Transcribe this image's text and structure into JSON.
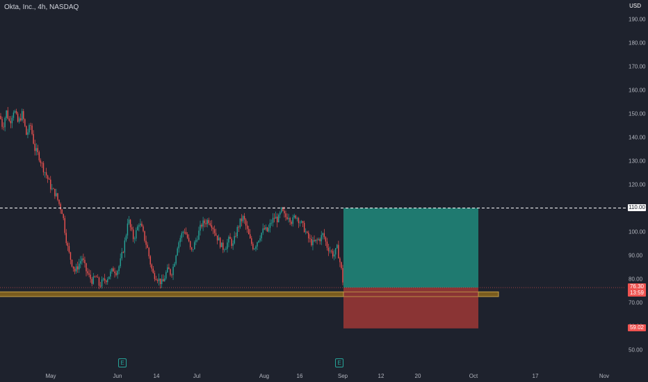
{
  "header": {
    "title": "Okta, Inc., 4h, NASDAQ"
  },
  "currency_label": "USD",
  "colors": {
    "background": "#1e222d",
    "up": "#26a69a",
    "down": "#ef5350",
    "zone": "#7a5c1e",
    "target_fill": "#1f7a70",
    "stop_fill": "#8a3434",
    "grid": "#2a2e39"
  },
  "price_tags": {
    "resistance": "110.00",
    "last_price": "76.30",
    "countdown": "13:59",
    "stop_level": "59.02"
  },
  "earnings_markers": [
    {
      "label": "E",
      "icon": "earnings-icon"
    },
    {
      "label": "E",
      "icon": "earnings-icon"
    }
  ],
  "chart_data": {
    "type": "candlestick",
    "title": "Okta, Inc., 4h, NASDAQ",
    "ylabel": "USD",
    "ylim": [
      45,
      195
    ],
    "y_ticks": [
      "190.00",
      "180.00",
      "170.00",
      "160.00",
      "150.00",
      "140.00",
      "130.00",
      "120.00",
      "110.00",
      "100.00",
      "90.00",
      "80.00",
      "70.00",
      "60.00",
      "50.00"
    ],
    "x_ticks": [
      "May",
      "Jun",
      "14",
      "Jul",
      "Aug",
      "16",
      "Sep",
      "12",
      "20",
      "Oct",
      "17",
      "Nov"
    ],
    "grid": false,
    "resistance_level": 110.0,
    "last_price": 76.3,
    "support_zone": [
      72.5,
      74.5
    ],
    "position": {
      "entry": 76.3,
      "target": 110.0,
      "stop": 59.02
    },
    "price_path": [
      [
        0,
        149
      ],
      [
        4,
        144
      ],
      [
        9,
        151
      ],
      [
        14,
        146
      ],
      [
        20,
        152
      ],
      [
        26,
        146
      ],
      [
        32,
        150
      ],
      [
        38,
        141
      ],
      [
        44,
        145
      ],
      [
        50,
        135
      ],
      [
        56,
        132
      ],
      [
        62,
        127
      ],
      [
        68,
        123
      ],
      [
        74,
        118
      ],
      [
        80,
        116
      ],
      [
        86,
        111
      ],
      [
        90,
        108
      ],
      [
        94,
        99
      ],
      [
        98,
        92
      ],
      [
        103,
        87
      ],
      [
        108,
        83
      ],
      [
        113,
        86
      ],
      [
        118,
        89
      ],
      [
        123,
        84
      ],
      [
        128,
        81
      ],
      [
        133,
        79
      ],
      [
        138,
        81
      ],
      [
        143,
        77
      ],
      [
        148,
        79
      ],
      [
        153,
        80
      ],
      [
        158,
        82
      ],
      [
        163,
        84
      ],
      [
        168,
        83
      ],
      [
        172,
        86
      ],
      [
        177,
        92
      ],
      [
        181,
        98
      ],
      [
        184,
        106
      ],
      [
        188,
        101
      ],
      [
        192,
        97
      ],
      [
        196,
        100
      ],
      [
        200,
        104
      ],
      [
        204,
        101
      ],
      [
        208,
        97
      ],
      [
        212,
        93
      ],
      [
        216,
        87
      ],
      [
        220,
        82
      ],
      [
        225,
        81
      ],
      [
        230,
        79
      ],
      [
        234,
        78
      ],
      [
        238,
        82
      ],
      [
        242,
        84
      ],
      [
        246,
        82
      ],
      [
        250,
        86
      ],
      [
        255,
        94
      ],
      [
        260,
        98
      ],
      [
        265,
        101
      ],
      [
        270,
        97
      ],
      [
        275,
        91
      ],
      [
        280,
        95
      ],
      [
        285,
        99
      ],
      [
        290,
        103
      ],
      [
        295,
        104
      ],
      [
        300,
        105
      ],
      [
        305,
        103
      ],
      [
        310,
        99
      ],
      [
        315,
        96
      ],
      [
        320,
        93
      ],
      [
        325,
        94
      ],
      [
        330,
        97
      ],
      [
        335,
        94
      ],
      [
        340,
        100
      ],
      [
        345,
        104
      ],
      [
        350,
        106
      ],
      [
        355,
        101
      ],
      [
        360,
        96
      ],
      [
        365,
        93
      ],
      [
        370,
        96
      ],
      [
        375,
        99
      ],
      [
        380,
        101
      ],
      [
        385,
        100
      ],
      [
        390,
        104
      ],
      [
        395,
        106
      ],
      [
        400,
        105
      ],
      [
        405,
        109
      ],
      [
        410,
        106
      ],
      [
        415,
        107
      ],
      [
        420,
        104
      ],
      [
        425,
        107
      ],
      [
        430,
        105
      ],
      [
        434,
        103
      ],
      [
        438,
        101
      ],
      [
        442,
        98
      ],
      [
        446,
        96
      ],
      [
        450,
        95
      ],
      [
        455,
        96
      ],
      [
        460,
        97
      ],
      [
        465,
        99
      ],
      [
        470,
        94
      ],
      [
        475,
        92
      ],
      [
        480,
        90
      ],
      [
        485,
        93
      ],
      [
        489,
        87
      ],
      [
        492,
        82
      ],
      [
        494,
        76.3
      ]
    ]
  }
}
